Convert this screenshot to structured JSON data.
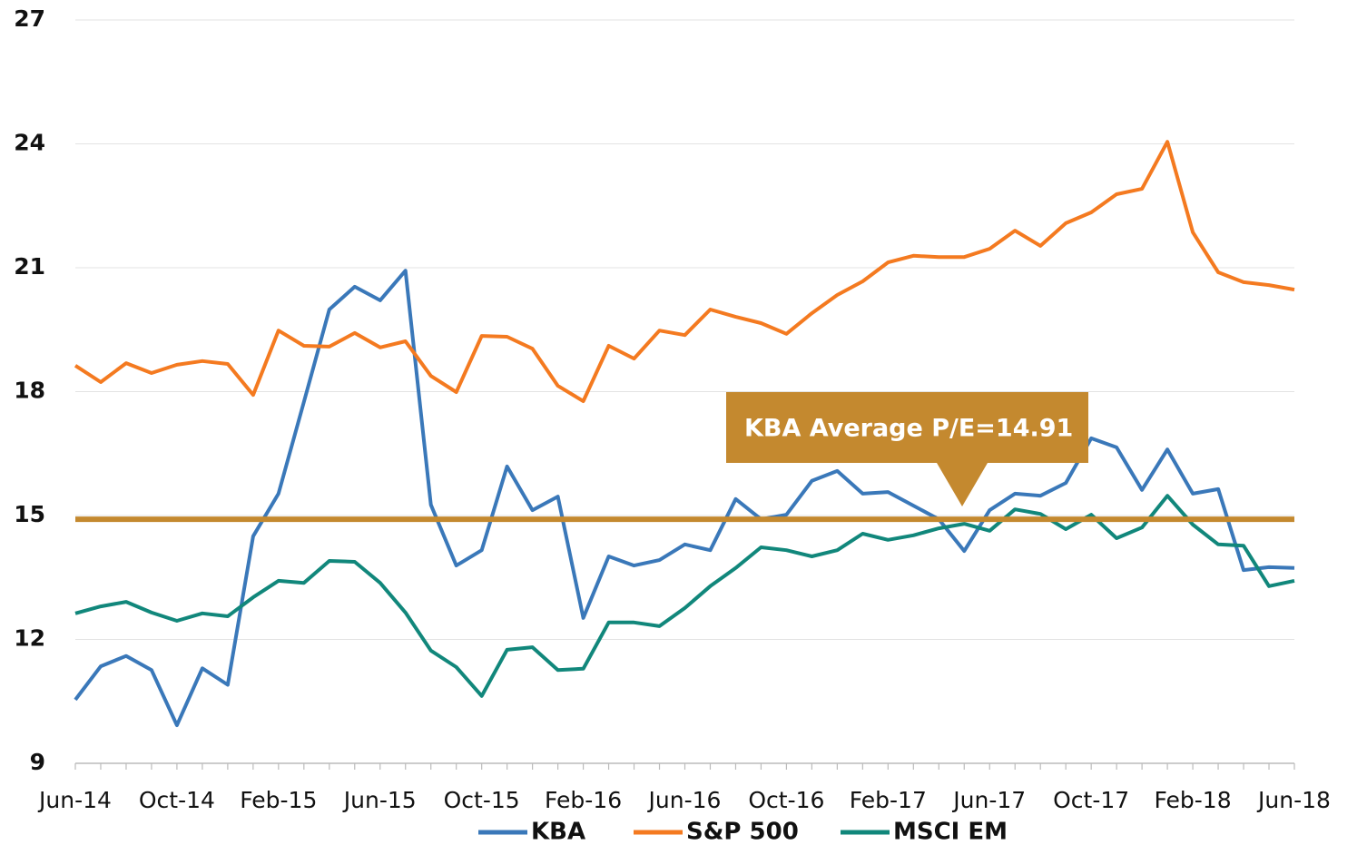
{
  "chart_data": {
    "type": "line",
    "categories": [
      "Jun-14",
      null,
      null,
      null,
      "Oct-14",
      null,
      null,
      null,
      "Feb-15",
      null,
      null,
      null,
      "Jun-15",
      null,
      null,
      null,
      "Oct-15",
      null,
      null,
      null,
      "Feb-16",
      null,
      null,
      null,
      "Jun-16",
      null,
      null,
      null,
      "Oct-16",
      null,
      null,
      null,
      "Feb-17",
      null,
      null,
      null,
      "Jun-17",
      null,
      null,
      null,
      "Oct-17",
      null,
      null,
      null,
      "Feb-18",
      null,
      null,
      null,
      "Jun-18"
    ],
    "series": [
      {
        "name": "KBA",
        "color": "#3a78b9",
        "values": [
          10.54,
          11.35,
          11.6,
          11.26,
          9.92,
          11.3,
          10.9,
          14.5,
          15.53,
          17.75,
          19.99,
          20.54,
          20.21,
          20.93,
          15.26,
          13.79,
          14.16,
          16.19,
          15.13,
          15.46,
          12.52,
          14.01,
          13.79,
          13.92,
          14.3,
          14.16,
          15.4,
          14.91,
          15.02,
          15.84,
          16.08,
          15.53,
          15.57,
          15.24,
          14.91,
          14.14,
          15.13,
          15.53,
          15.48,
          15.79,
          16.87,
          16.65,
          15.62,
          16.6,
          15.53,
          15.64,
          13.68,
          13.75,
          13.73
        ]
      },
      {
        "name": "S&P 500",
        "color": "#f47a20",
        "values": [
          18.63,
          18.23,
          18.69,
          18.45,
          18.65,
          18.74,
          18.67,
          17.92,
          19.48,
          19.11,
          19.09,
          19.42,
          19.07,
          19.22,
          18.38,
          17.99,
          19.35,
          19.33,
          19.04,
          18.14,
          17.77,
          19.11,
          18.8,
          19.48,
          19.37,
          19.99,
          19.81,
          19.66,
          19.4,
          19.9,
          20.34,
          20.67,
          21.13,
          21.29,
          21.26,
          21.26,
          21.46,
          21.9,
          21.53,
          22.08,
          22.34,
          22.78,
          22.91,
          24.05,
          21.86,
          20.89,
          20.65,
          20.58,
          20.47
        ]
      },
      {
        "name": "MSCI EM",
        "color": "#11877b",
        "values": [
          12.63,
          12.8,
          12.91,
          12.65,
          12.45,
          12.63,
          12.56,
          13.02,
          13.42,
          13.37,
          13.9,
          13.88,
          13.37,
          12.65,
          11.73,
          11.33,
          10.63,
          11.75,
          11.81,
          11.26,
          11.29,
          12.41,
          12.41,
          12.32,
          12.76,
          13.29,
          13.73,
          14.23,
          14.16,
          14.01,
          14.16,
          14.56,
          14.41,
          14.52,
          14.69,
          14.8,
          14.63,
          15.15,
          15.04,
          14.67,
          15.02,
          14.45,
          14.71,
          15.48,
          14.78,
          14.3,
          14.27,
          13.29,
          13.42
        ]
      }
    ],
    "reference_line": {
      "value": 14.91,
      "label": "KBA Average P/E=14.91",
      "color": "#c4892f"
    },
    "ylim": [
      9,
      27
    ],
    "yticks": [
      9,
      12,
      15,
      18,
      21,
      24,
      27
    ],
    "grid": true,
    "legend": "bottom"
  }
}
